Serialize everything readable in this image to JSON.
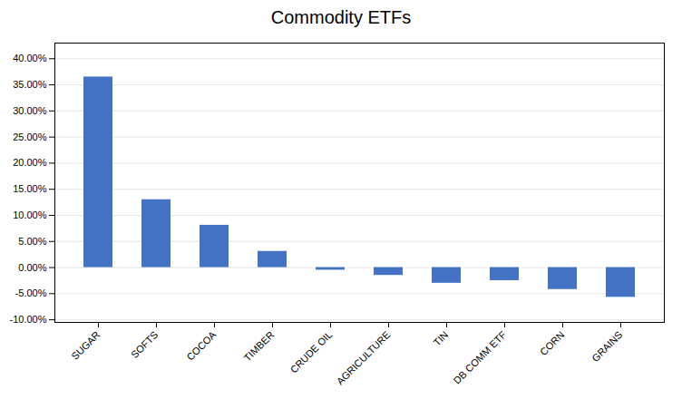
{
  "chart_data": {
    "type": "bar",
    "title": "Commodity ETFs",
    "categories": [
      "SUGAR",
      "SOFTS",
      "COCOA",
      "TIMBER",
      "CRUDE OIL",
      "AGRICULTURE",
      "TIN",
      "DB COMM ETF",
      "CORN",
      "GRAINS"
    ],
    "values": [
      0.365,
      0.13,
      0.081,
      0.031,
      -0.005,
      -0.015,
      -0.03,
      -0.025,
      -0.042,
      -0.057
    ],
    "color": "#4472C4",
    "ylim": [
      -0.105,
      0.43
    ],
    "yticks": [
      {
        "value": -0.1,
        "label": "-10.00%"
      },
      {
        "value": -0.05,
        "label": "-5.00%"
      },
      {
        "value": 0.0,
        "label": "0.00%"
      },
      {
        "value": 0.05,
        "label": "5.00%"
      },
      {
        "value": 0.1,
        "label": "10.00%"
      },
      {
        "value": 0.15,
        "label": "15.00%"
      },
      {
        "value": 0.2,
        "label": "20.00%"
      },
      {
        "value": 0.25,
        "label": "25.00%"
      },
      {
        "value": 0.3,
        "label": "30.00%"
      },
      {
        "value": 0.35,
        "label": "35.00%"
      },
      {
        "value": 0.4,
        "label": "40.00%"
      }
    ],
    "grid": true
  }
}
